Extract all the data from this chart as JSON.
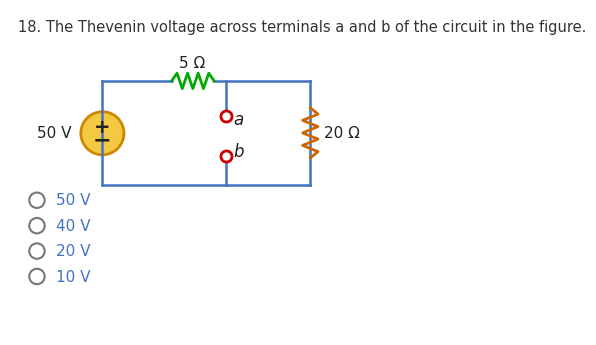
{
  "title": "18. The Thevenin voltage across terminals a and b of the circuit in the figure.",
  "title_fontsize": 10.5,
  "bg_color": "#ffffff",
  "circuit_color": "#4472c4",
  "resistor5_color": "#00aa00",
  "resistor20_color": "#cc6600",
  "source_fill": "#f5c842",
  "source_border": "#cc8800",
  "terminal_color": "#cc0000",
  "options": [
    "50 V",
    "40 V",
    "20 V",
    "10 V"
  ],
  "source_label": "50 V",
  "res5_label": "5 Ω",
  "res20_label": "20 Ω",
  "terminal_a": "a",
  "terminal_b": "b"
}
